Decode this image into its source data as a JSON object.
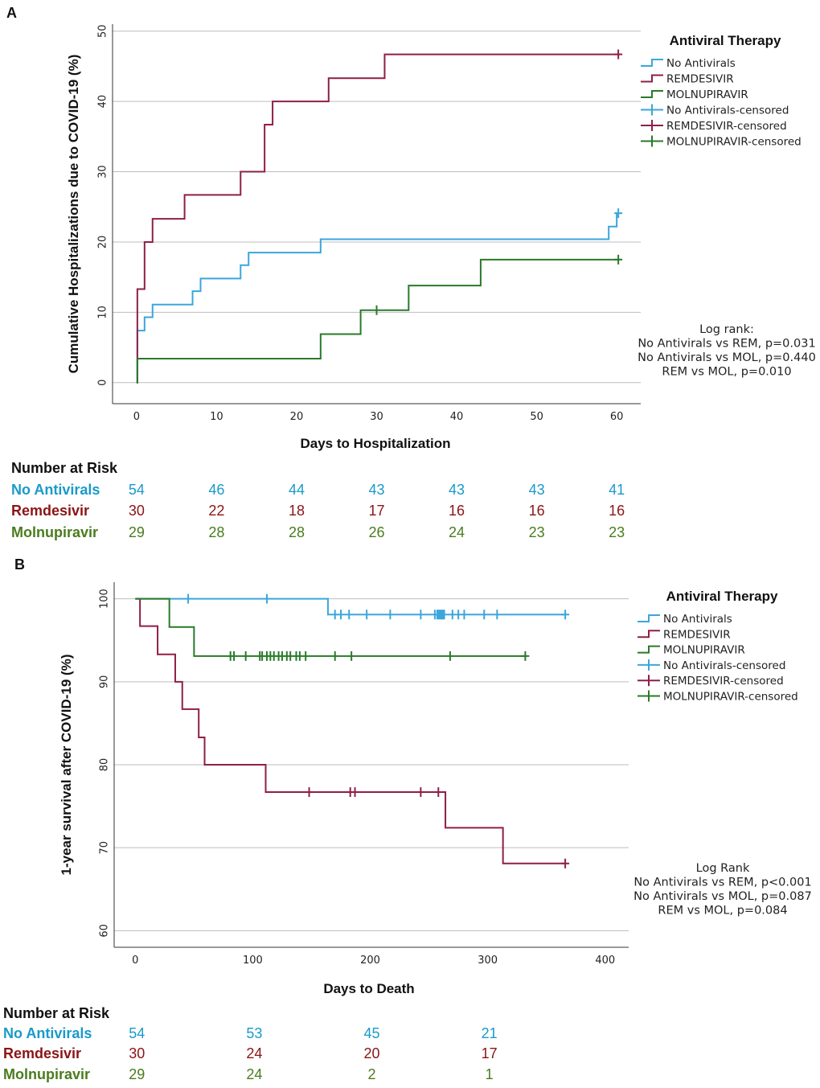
{
  "colors": {
    "no_antivirals": "#3ba6dc",
    "remdesivir": "#8e1f49",
    "molnupiravir": "#2a7a2a",
    "risk_no_antivirals": "#1a9ac9",
    "risk_remdesivir": "#8b1416",
    "risk_molnupiravir": "#4a7c1d",
    "grid": "#bdbdbd"
  },
  "chart_data": [
    {
      "panel": "A",
      "type": "line",
      "step": true,
      "xlabel": "Days to Hospitalization",
      "ylabel": "Cumulative Hospitalizations due to COVID-19 (%)",
      "xlim": [
        -3,
        63
      ],
      "ylim": [
        -3,
        51
      ],
      "xticks": [
        0,
        10,
        20,
        30,
        40,
        50,
        60
      ],
      "yticks": [
        0,
        10,
        20,
        30,
        40,
        50
      ],
      "grid": "horizontal",
      "legend": {
        "title": "Antiviral Therapy",
        "position": "top-right",
        "entries": [
          "No Antivirals",
          "REMDESIVIR",
          "MOLNUPIRAVIR",
          "No Antivirals-censored",
          "REMDESIVIR-censored",
          "MOLNUPIRAVIR-censored"
        ]
      },
      "series": [
        {
          "name": "No Antivirals",
          "color_key": "no_antivirals",
          "x": [
            0,
            0.1,
            1,
            2,
            7,
            8,
            13,
            14,
            23,
            59,
            60,
            60.2
          ],
          "y": [
            0,
            7.4,
            9.3,
            11.1,
            13,
            14.8,
            16.7,
            18.5,
            20.4,
            22.2,
            24.1,
            24.1
          ],
          "censored": [
            [
              60.2,
              24.1
            ]
          ]
        },
        {
          "name": "REMDESIVIR",
          "color_key": "remdesivir",
          "x": [
            0,
            0.1,
            1,
            2,
            6,
            13,
            16,
            17,
            24,
            31,
            60.2
          ],
          "y": [
            0,
            13.3,
            20,
            23.3,
            26.7,
            30,
            36.7,
            40,
            43.3,
            46.7,
            46.7
          ],
          "censored": [
            [
              60.2,
              46.7
            ]
          ]
        },
        {
          "name": "MOLNUPIRAVIR",
          "color_key": "molnupiravir",
          "x": [
            0,
            0.1,
            23,
            28,
            34,
            43,
            60.2
          ],
          "y": [
            0,
            3.4,
            6.9,
            10.3,
            13.8,
            17.5,
            17.5
          ],
          "censored": [
            [
              30,
              10.3
            ],
            [
              60.2,
              17.5
            ]
          ]
        }
      ],
      "annotation": [
        "Log rank:",
        "No Antivirals vs REM, p=0.031",
        "No Antivirals vs MOL, p=0.440",
        "REM vs MOL, p=0.010"
      ],
      "risk_table": {
        "title": "Number at Risk",
        "times": [
          0,
          10,
          20,
          30,
          40,
          50,
          60
        ],
        "rows": [
          {
            "label": "No Antivirals",
            "color_key": "risk_no_antivirals",
            "values": [
              "54",
              "46",
              "44",
              "43",
              "43",
              "43",
              "41"
            ]
          },
          {
            "label": "Remdesivir",
            "color_key": "risk_remdesivir",
            "values": [
              "30",
              "22",
              "18",
              "17",
              "16",
              "16",
              "16"
            ]
          },
          {
            "label": "Molnupiravir",
            "color_key": "risk_molnupiravir",
            "values": [
              "29",
              "28",
              "28",
              "26",
              "24",
              "23",
              "23"
            ]
          }
        ]
      }
    },
    {
      "panel": "B",
      "type": "line",
      "step": true,
      "xlabel": "Days to Death",
      "ylabel": "1-year survival after COVID-19 (%)",
      "xlim": [
        -18,
        420
      ],
      "ylim": [
        58,
        102
      ],
      "xticks": [
        0,
        100,
        200,
        300,
        400
      ],
      "yticks": [
        60,
        70,
        80,
        90,
        100
      ],
      "grid": "horizontal",
      "legend": {
        "title": "Antiviral Therapy",
        "position": "top-right",
        "entries": [
          "No Antivirals",
          "REMDESIVIR",
          "MOLNUPIRAVIR",
          "No Antivirals-censored",
          "REMDESIVIR-censored",
          "MOLNUPIRAVIR-censored"
        ]
      },
      "series": [
        {
          "name": "No Antivirals",
          "color_key": "no_antivirals",
          "x": [
            0,
            164,
            366
          ],
          "y": [
            100,
            98.1,
            98.1
          ],
          "censored": [
            [
              45,
              100
            ],
            [
              112,
              100
            ],
            [
              170,
              98.1
            ],
            [
              175,
              98.1
            ],
            [
              182,
              98.1
            ],
            [
              197,
              98.1
            ],
            [
              217,
              98.1
            ],
            [
              243,
              98.1
            ],
            [
              255,
              98.1
            ],
            [
              257,
              98.1
            ],
            [
              258,
              98.1
            ],
            [
              259,
              98.1
            ],
            [
              260,
              98.1
            ],
            [
              261,
              98.1
            ],
            [
              262,
              98.1
            ],
            [
              263,
              98.1
            ],
            [
              270,
              98.1
            ],
            [
              275,
              98.1
            ],
            [
              280,
              98.1
            ],
            [
              297,
              98.1
            ],
            [
              308,
              98.1
            ],
            [
              366,
              98.1
            ]
          ]
        },
        {
          "name": "REMDESIVIR",
          "color_key": "remdesivir",
          "x": [
            0,
            4,
            19,
            34,
            40,
            54,
            59,
            111,
            264,
            313,
            366
          ],
          "y": [
            100,
            96.7,
            93.3,
            90,
            86.7,
            83.3,
            80,
            76.7,
            72.4,
            68.1,
            68.1
          ],
          "censored": [
            [
              148,
              76.7
            ],
            [
              183,
              76.7
            ],
            [
              187,
              76.7
            ],
            [
              243,
              76.7
            ],
            [
              258,
              76.7
            ],
            [
              366,
              68.1
            ]
          ]
        },
        {
          "name": "MOLNUPIRAVIR",
          "color_key": "molnupiravir",
          "x": [
            0,
            29,
            50,
            332
          ],
          "y": [
            100,
            96.6,
            93.1,
            93.1
          ],
          "censored": [
            [
              81,
              93.1
            ],
            [
              84,
              93.1
            ],
            [
              94,
              93.1
            ],
            [
              106,
              93.1
            ],
            [
              108,
              93.1
            ],
            [
              112,
              93.1
            ],
            [
              115,
              93.1
            ],
            [
              118,
              93.1
            ],
            [
              122,
              93.1
            ],
            [
              125,
              93.1
            ],
            [
              129,
              93.1
            ],
            [
              132,
              93.1
            ],
            [
              137,
              93.1
            ],
            [
              140,
              93.1
            ],
            [
              145,
              93.1
            ],
            [
              170,
              93.1
            ],
            [
              184,
              93.1
            ],
            [
              268,
              93.1
            ],
            [
              332,
              93.1
            ]
          ]
        }
      ],
      "annotation": [
        "Log Rank",
        "No Antivirals vs REM, p<0.001",
        "No Antivirals vs MOL, p=0.087",
        "REM vs MOL, p=0.084"
      ],
      "risk_table": {
        "title": "Number at Risk",
        "times": [
          0,
          100,
          200,
          300
        ],
        "rows": [
          {
            "label": "No Antivirals",
            "color_key": "risk_no_antivirals",
            "values": [
              "54",
              "53",
              "45",
              "21"
            ]
          },
          {
            "label": "Remdesivir",
            "color_key": "risk_remdesivir",
            "values": [
              "30",
              "24",
              "20",
              "17"
            ]
          },
          {
            "label": "Molnupiravir",
            "color_key": "risk_molnupiravir",
            "values": [
              "29",
              "24",
              "2",
              "1"
            ]
          }
        ]
      }
    }
  ]
}
